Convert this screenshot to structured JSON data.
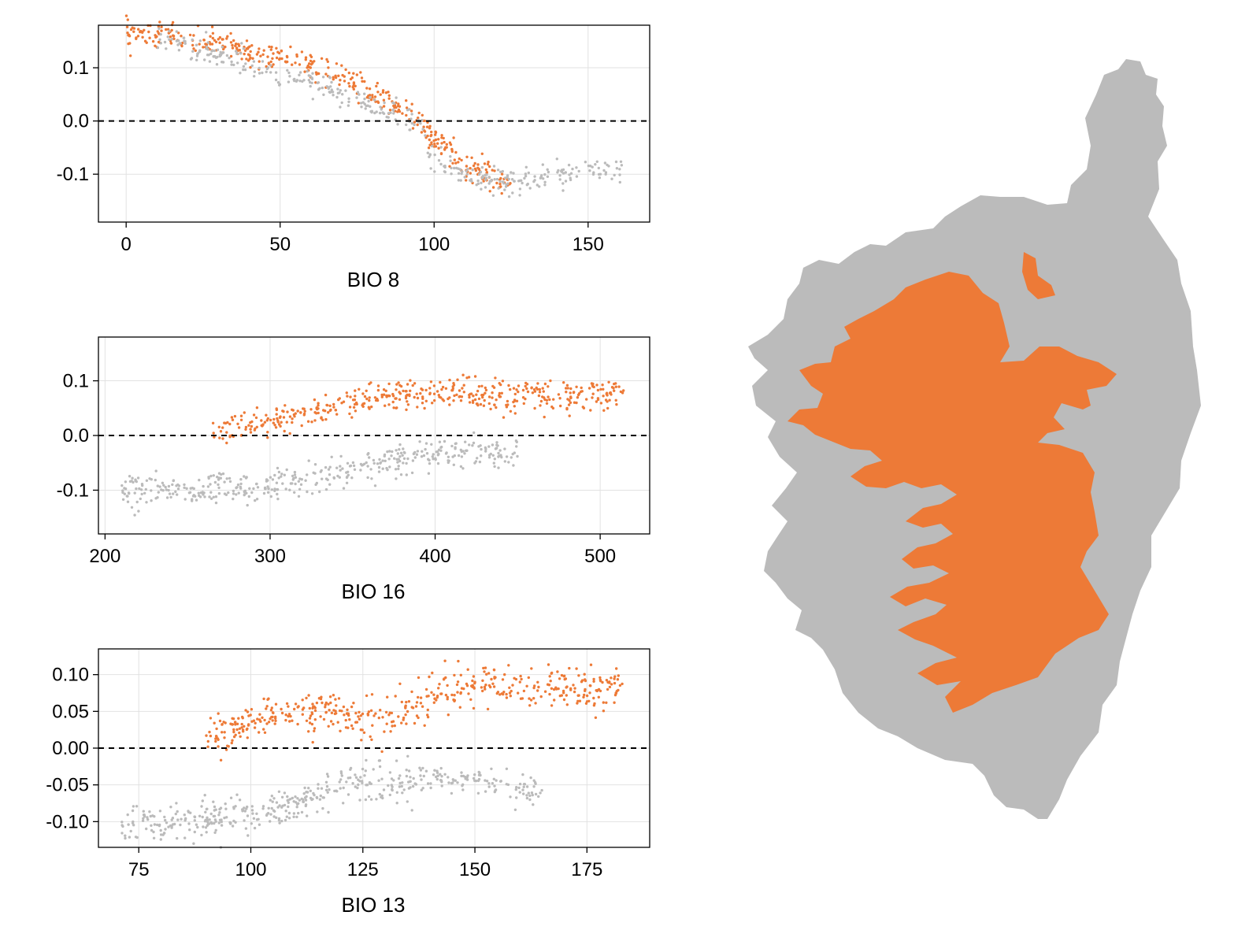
{
  "colors": {
    "orange": "#ED7A37",
    "gray": "#BBBBBB",
    "grid": "#E2E2E2",
    "frame": "#000000",
    "zero_line": "#000000"
  },
  "chart_data": [
    {
      "type": "scatter",
      "title": "",
      "xlabel": "BIO 8",
      "ylabel": "",
      "xlim": [
        -9,
        170
      ],
      "ylim": [
        -0.19,
        0.18
      ],
      "xticks": [
        0,
        50,
        100,
        150
      ],
      "xtick_labels": [
        "0",
        "50",
        "100",
        "150"
      ],
      "yticks": [
        0.1,
        0.0,
        -0.1
      ],
      "ytick_labels": [
        "0.1",
        "0.0",
        "-0.1"
      ],
      "reference_line": {
        "y": 0,
        "style": "dashed"
      },
      "grid": true,
      "series": [
        {
          "color_key": "orange",
          "trend": [
            [
              0,
              0.165
            ],
            [
              20,
              0.155
            ],
            [
              40,
              0.13
            ],
            [
              60,
              0.105
            ],
            [
              75,
              0.07
            ],
            [
              90,
              0.02
            ],
            [
              100,
              -0.03
            ],
            [
              110,
              -0.085
            ],
            [
              125,
              -0.115
            ]
          ],
          "spread": 0.012,
          "count": 420,
          "x_range": [
            0,
            125
          ]
        },
        {
          "color_key": "gray",
          "trend": [
            [
              10,
              0.16
            ],
            [
              95,
              0.0
            ],
            [
              100,
              -0.07
            ],
            [
              115,
              -0.11
            ],
            [
              130,
              -0.115
            ],
            [
              140,
              -0.1
            ],
            [
              160,
              -0.09
            ]
          ],
          "spread": 0.012,
          "count": 380,
          "x_range": [
            10,
            161
          ]
        }
      ]
    },
    {
      "type": "scatter",
      "title": "",
      "xlabel": "BIO 16",
      "ylabel": "",
      "xlim": [
        196,
        530
      ],
      "ylim": [
        -0.18,
        0.18
      ],
      "xticks": [
        200,
        300,
        400,
        500
      ],
      "xtick_labels": [
        "200",
        "300",
        "400",
        "500"
      ],
      "yticks": [
        0.1,
        0.0,
        -0.1
      ],
      "ytick_labels": [
        "0.1",
        "0.0",
        "-0.1"
      ],
      "reference_line": {
        "y": 0,
        "style": "dashed"
      },
      "grid": true,
      "series": [
        {
          "color_key": "orange",
          "trend": [
            [
              270,
              0.01
            ],
            [
              310,
              0.03
            ],
            [
              350,
              0.06
            ],
            [
              380,
              0.075
            ],
            [
              420,
              0.075
            ],
            [
              470,
              0.07
            ],
            [
              515,
              0.08
            ]
          ],
          "spread": 0.014,
          "count": 450,
          "x_range": [
            265,
            515
          ]
        },
        {
          "color_key": "gray",
          "trend": [
            [
              210,
              -0.1
            ],
            [
              250,
              -0.095
            ],
            [
              290,
              -0.1
            ],
            [
              320,
              -0.08
            ],
            [
              350,
              -0.06
            ],
            [
              380,
              -0.04
            ],
            [
              420,
              -0.03
            ],
            [
              450,
              -0.04
            ]
          ],
          "spread": 0.014,
          "count": 420,
          "x_range": [
            210,
            450
          ]
        }
      ]
    },
    {
      "type": "scatter",
      "title": "",
      "xlabel": "BIO 13",
      "ylabel": "",
      "xlim": [
        66,
        189
      ],
      "ylim": [
        -0.135,
        0.135
      ],
      "xticks": [
        75,
        100,
        125,
        150,
        175
      ],
      "xtick_labels": [
        "75",
        "100",
        "125",
        "150",
        "175"
      ],
      "yticks": [
        0.1,
        0.05,
        0.0,
        -0.05,
        -0.1
      ],
      "ytick_labels": [
        "0.10",
        "0.05",
        "0.00",
        "-0.05",
        "-0.10"
      ],
      "reference_line": {
        "y": 0,
        "style": "dashed"
      },
      "grid": true,
      "series": [
        {
          "color_key": "orange",
          "trend": [
            [
              95,
              0.02
            ],
            [
              105,
              0.045
            ],
            [
              120,
              0.045
            ],
            [
              130,
              0.04
            ],
            [
              140,
              0.065
            ],
            [
              150,
              0.085
            ],
            [
              160,
              0.085
            ],
            [
              175,
              0.075
            ],
            [
              183,
              0.08
            ]
          ],
          "spread": 0.015,
          "count": 480,
          "x_range": [
            90,
            183
          ]
        },
        {
          "color_key": "gray",
          "trend": [
            [
              71,
              -0.1
            ],
            [
              85,
              -0.1
            ],
            [
              100,
              -0.09
            ],
            [
              110,
              -0.075
            ],
            [
              120,
              -0.05
            ],
            [
              135,
              -0.045
            ],
            [
              150,
              -0.04
            ],
            [
              165,
              -0.06
            ]
          ],
          "spread": 0.012,
          "count": 460,
          "x_range": [
            71,
            165
          ]
        }
      ]
    }
  ],
  "map": {
    "type": "raster-map",
    "classes": [
      {
        "name": "positive",
        "color_key": "orange"
      },
      {
        "name": "negative",
        "color_key": "gray"
      }
    ]
  }
}
